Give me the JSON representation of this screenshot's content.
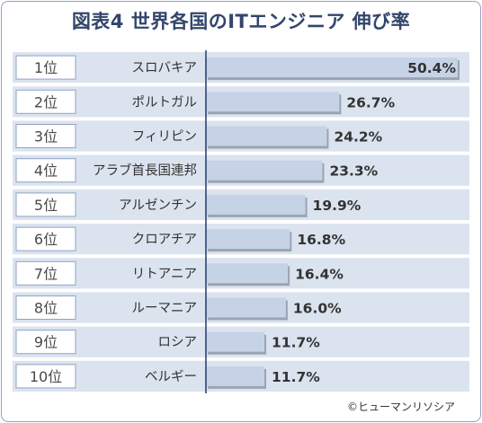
{
  "chart_data": {
    "type": "bar",
    "orientation": "horizontal",
    "title": "図表4 世界各国のITエンジニア 伸び率",
    "ranks": [
      "1位",
      "2位",
      "3位",
      "4位",
      "5位",
      "6位",
      "7位",
      "8位",
      "9位",
      "10位"
    ],
    "categories": [
      "スロバキア",
      "ポルトガル",
      "フィリピン",
      "アラブ首長国連邦",
      "アルゼンチン",
      "クロアチア",
      "リトアニア",
      "ルーマニア",
      "ロシア",
      "ベルギー"
    ],
    "values": [
      50.4,
      26.7,
      24.2,
      23.3,
      19.9,
      16.8,
      16.4,
      16.0,
      11.7,
      11.7
    ],
    "value_labels": [
      "50.4%",
      "26.7%",
      "24.2%",
      "23.3%",
      "19.9%",
      "16.8%",
      "16.4%",
      "16.0%",
      "11.7%",
      "11.7%"
    ],
    "xlim": [
      0,
      50.4
    ],
    "grid": false,
    "colors": {
      "bar": "#c6d3e6",
      "bar_shadow": "#9aa4b2",
      "stripe": "#dbe3ef",
      "rank_box_border": "#8fa3c3",
      "axis": "#1f3a68",
      "title": "#33456b"
    },
    "credit": "©ヒューマンリソシア"
  }
}
